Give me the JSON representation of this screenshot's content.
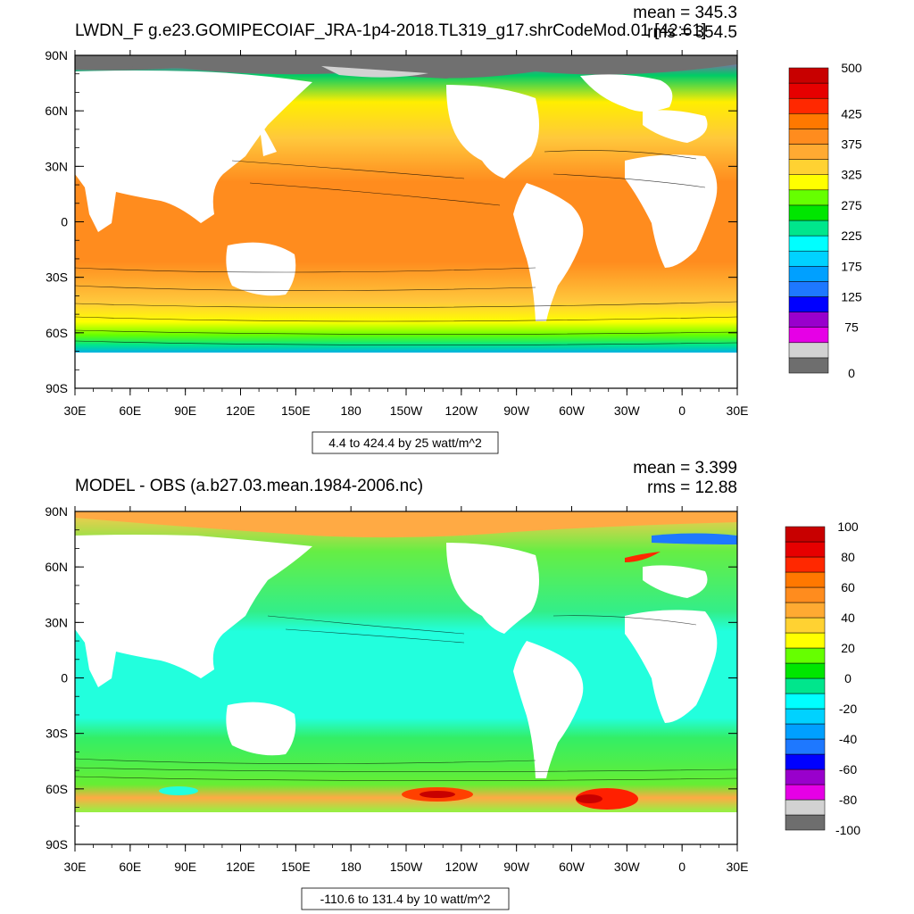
{
  "panels": [
    {
      "id": "top",
      "title": "LWDN_F g.e23.GOMIPECOIAF_JRA-1p4-2018.TL319_g17.shrCodeMod.01 [42:61]",
      "mean_label": "mean = 345.3",
      "rms_label": "rms = 354.5",
      "range_label": "4.4 to 424.4 by 25 watt/m^2",
      "lat_labels": [
        "90N",
        "60N",
        "30N",
        "0",
        "30S",
        "60S",
        "90S"
      ],
      "lon_labels": [
        "30E",
        "60E",
        "90E",
        "120E",
        "150E",
        "180",
        "150W",
        "120W",
        "90W",
        "60W",
        "30W",
        "0",
        "30E"
      ],
      "colorbar": {
        "colors": [
          "#6e6e6e",
          "#d2d2d2",
          "#e600e6",
          "#9900cc",
          "#0000ff",
          "#1e78ff",
          "#00a0ff",
          "#00d2ff",
          "#00ffff",
          "#00e68c",
          "#00e600",
          "#66ff00",
          "#ffff00",
          "#ffd232",
          "#ffaa32",
          "#ff8c1e",
          "#ff7800",
          "#ff2800",
          "#e60000",
          "#c80000"
        ],
        "labels": [
          "500",
          "425",
          "375",
          "325",
          "275",
          "225",
          "175",
          "125",
          "75",
          "0"
        ]
      }
    },
    {
      "id": "bottom",
      "title": "MODEL - OBS (a.b27.03.mean.1984-2006.nc)",
      "mean_label": "mean = 3.399",
      "rms_label": "rms = 12.88",
      "range_label": "-110.6 to 131.4 by 10 watt/m^2",
      "lat_labels": [
        "90N",
        "60N",
        "30N",
        "0",
        "30S",
        "60S",
        "90S"
      ],
      "lon_labels": [
        "30E",
        "60E",
        "90E",
        "120E",
        "150E",
        "180",
        "150W",
        "120W",
        "90W",
        "60W",
        "30W",
        "0",
        "30E"
      ],
      "colorbar": {
        "colors": [
          "#6e6e6e",
          "#d2d2d2",
          "#e600e6",
          "#9900cc",
          "#0000ff",
          "#1e78ff",
          "#00a0ff",
          "#00d2ff",
          "#00ffff",
          "#00e68c",
          "#00e600",
          "#66ff00",
          "#ffff00",
          "#ffd232",
          "#ffaa32",
          "#ff8c1e",
          "#ff7800",
          "#ff2800",
          "#e60000",
          "#c80000"
        ],
        "labels": [
          "100",
          "80",
          "60",
          "40",
          "20",
          "0",
          "-20",
          "-40",
          "-60",
          "-80",
          "-100"
        ]
      }
    }
  ]
}
